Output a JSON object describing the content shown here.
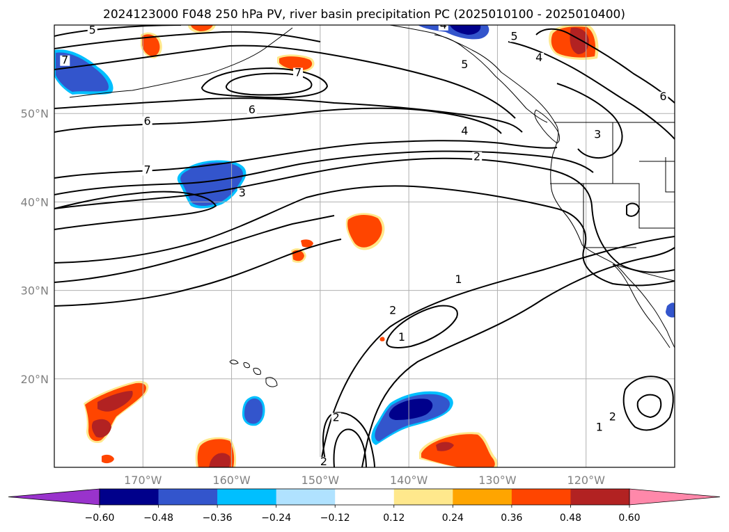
{
  "title": "2024123000 F048 250 hPa PV, river basin precipitation PC (2025010100 - 2025010400)",
  "map": {
    "lon_range": [
      -180,
      -110
    ],
    "lat_range": [
      10,
      60
    ],
    "lat_ticks": [
      {
        "lat": 50,
        "label": "50°N"
      },
      {
        "lat": 40,
        "label": "40°N"
      },
      {
        "lat": 30,
        "label": "30°N"
      },
      {
        "lat": 20,
        "label": "20°N"
      }
    ],
    "lon_ticks": [
      {
        "lon": -170,
        "label": "170°W"
      },
      {
        "lon": -160,
        "label": "160°W"
      },
      {
        "lon": -150,
        "label": "150°W"
      },
      {
        "lon": -140,
        "label": "140°W"
      },
      {
        "lon": -130,
        "label": "130°W"
      },
      {
        "lon": -120,
        "label": "120°W"
      }
    ]
  },
  "pv_contour_labels": [
    {
      "value": "5",
      "lon": -175.7,
      "lat": 59.1
    },
    {
      "value": "7",
      "lon": -178.8,
      "lat": 55.7
    },
    {
      "value": "7",
      "lon": -152.5,
      "lat": 54.3
    },
    {
      "value": "6",
      "lon": -157.7,
      "lat": 50.1
    },
    {
      "value": "6",
      "lon": -169.5,
      "lat": 48.8
    },
    {
      "value": "7",
      "lon": -169.5,
      "lat": 43.3
    },
    {
      "value": "3",
      "lon": -158.8,
      "lat": 40.7
    },
    {
      "value": "5",
      "lon": -128.1,
      "lat": 58.4
    },
    {
      "value": "4",
      "lon": -125.3,
      "lat": 56.0
    },
    {
      "value": "5",
      "lon": -133.7,
      "lat": 55.2
    },
    {
      "value": "6",
      "lon": -111.3,
      "lat": 51.6
    },
    {
      "value": "4",
      "lon": -133.7,
      "lat": 47.7
    },
    {
      "value": "2",
      "lon": -132.3,
      "lat": 44.8
    },
    {
      "value": "3",
      "lon": -118.7,
      "lat": 47.3
    },
    {
      "value": "1",
      "lon": -134.4,
      "lat": 30.9
    },
    {
      "value": "2",
      "lon": -141.8,
      "lat": 27.4
    },
    {
      "value": "1",
      "lon": -140.8,
      "lat": 24.4
    },
    {
      "value": "2",
      "lon": -148.2,
      "lat": 15.3
    },
    {
      "value": "2",
      "lon": -117.0,
      "lat": 15.4
    },
    {
      "value": "1",
      "lon": -118.5,
      "lat": 14.2
    },
    {
      "value": "2",
      "lon": -149.6,
      "lat": 10.3
    },
    {
      "value": "4",
      "lon": -136.1,
      "lat": 59.7
    }
  ],
  "precip_pc_patches": [
    {
      "category": "-0.48 to -0.36",
      "color": "#3355cc",
      "lon": -162.5,
      "lat": 42.0
    },
    {
      "category": "-0.48 to -0.36",
      "color": "#3355cc",
      "lon": -176.0,
      "lat": 54.5
    },
    {
      "category": "-0.48 to -0.36",
      "color": "#3355cc",
      "lon": -156.7,
      "lat": 16.4
    },
    {
      "category": "-0.60 to -0.48",
      "color": "#00008b",
      "lon": -140.0,
      "lat": 15.0
    },
    {
      "category": "0.36 to 0.48",
      "color": "#ff4500",
      "lon": -146.4,
      "lat": 37.4
    },
    {
      "category": "0.36 to 0.48",
      "color": "#ff4500",
      "lon": -152.0,
      "lat": 56.0
    },
    {
      "category": "0.36 to 0.48",
      "color": "#ff4500",
      "lon": -120.5,
      "lat": 57.9
    },
    {
      "category": "0.48 to 0.60",
      "color": "#b22222",
      "lon": -172.5,
      "lat": 15.5
    },
    {
      "category": "0.48 to 0.60",
      "color": "#b22222",
      "lon": -160.0,
      "lat": 11.2
    },
    {
      "category": "0.36 to 0.48",
      "color": "#ff4500",
      "lon": -134.7,
      "lat": 11.8
    }
  ],
  "colorbar": {
    "extend": "both",
    "levels": [
      "-0.60",
      "-0.48",
      "-0.36",
      "-0.24",
      "-0.12",
      "0.12",
      "0.24",
      "0.36",
      "0.48",
      "0.60"
    ],
    "colors": [
      "#9933cc",
      "#00008b",
      "#3355cc",
      "#00bfff",
      "#b0e2ff",
      "#ffffff",
      "#ffe88c",
      "#ffa500",
      "#ff4500",
      "#b22222",
      "#ff88aa"
    ]
  }
}
